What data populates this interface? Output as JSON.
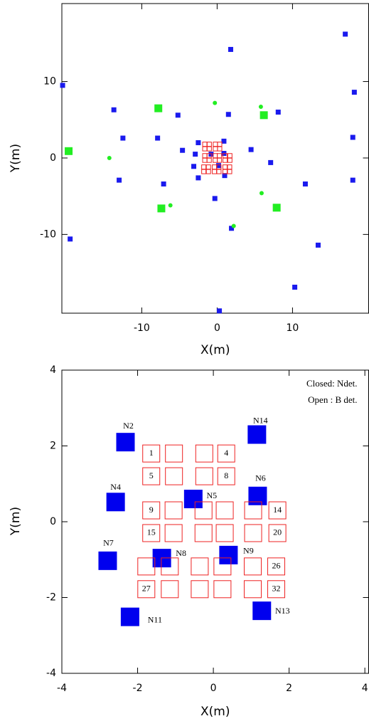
{
  "chart_data": [
    {
      "type": "scatter",
      "xlabel": "X(m)",
      "ylabel": "Y(m)",
      "xlim": [
        -20.6,
        20.1
      ],
      "ylim": [
        -20.3,
        20.2
      ],
      "xticks": [
        -10,
        0,
        10
      ],
      "yticks": [
        -10,
        0,
        10
      ],
      "series": [
        {
          "color": "#1a1aee",
          "marker": "square",
          "filled": true,
          "x": [
            17.0,
            1.8,
            -20.5,
            18.2,
            -13.7,
            -5.2,
            1.5,
            8.1,
            -12.5,
            -7.9,
            18.0,
            -4.6,
            4.5,
            -2.5,
            0.9,
            -2.9,
            -0.8,
            7.1,
            -3.1,
            0.2,
            0.9,
            1.0,
            -13.0,
            -7.1,
            -2.5,
            11.7,
            18.0,
            -0.3,
            1.9,
            -19.5,
            13.4,
            10.3,
            0.3
          ],
          "y": [
            16.2,
            14.2,
            9.5,
            8.6,
            6.3,
            5.6,
            5.7,
            6.0,
            2.6,
            2.6,
            2.7,
            1.0,
            1.1,
            2.0,
            2.2,
            0.5,
            0.5,
            -0.6,
            -1.1,
            -1.0,
            0.6,
            -2.3,
            -2.9,
            -3.4,
            -2.6,
            -3.4,
            -2.9,
            -5.3,
            -9.2,
            -10.6,
            -11.4,
            -16.9,
            -20.0
          ]
        },
        {
          "color": "#22ee22",
          "marker": "square",
          "filled": true,
          "x": [
            -7.8,
            6.2,
            -19.7,
            -7.4,
            7.9
          ],
          "y": [
            6.5,
            5.6,
            0.9,
            -6.6,
            -6.5
          ]
        },
        {
          "color": "#22ee22",
          "marker": "circle",
          "filled": true,
          "x": [
            -0.3,
            5.8,
            -14.3,
            -6.2,
            5.9,
            2.2
          ],
          "y": [
            7.2,
            6.7,
            0.0,
            -6.2,
            -4.6,
            -8.9
          ]
        },
        {
          "color": "#ee2222",
          "marker": "square",
          "filled": false,
          "x": [
            -1.64,
            -1.04,
            -0.24,
            0.34,
            -1.64,
            -1.04,
            -0.24,
            0.34,
            -1.64,
            -1.05,
            -0.26,
            0.3,
            1.05,
            1.69,
            -1.64,
            -1.05,
            -0.26,
            0.3,
            1.05,
            1.69,
            -1.77,
            -1.15,
            -0.36,
            0.24,
            1.04,
            1.66,
            -1.77,
            -1.15,
            -0.36,
            0.24,
            1.04,
            1.66
          ],
          "y": [
            1.8,
            1.8,
            1.8,
            1.8,
            1.2,
            1.2,
            1.2,
            1.2,
            0.3,
            0.3,
            0.3,
            0.3,
            0.3,
            0.3,
            -0.3,
            -0.3,
            -0.3,
            -0.3,
            -0.3,
            -0.3,
            -1.18,
            -1.18,
            -1.18,
            -1.18,
            -1.18,
            -1.18,
            -1.78,
            -1.78,
            -1.78,
            -1.78,
            -1.78,
            -1.78
          ]
        }
      ]
    },
    {
      "type": "scatter",
      "xlabel": "X(m)",
      "ylabel": "Y(m)",
      "xlim": [
        -4,
        4.1
      ],
      "ylim": [
        -4,
        4
      ],
      "xticks": [
        -4,
        -2,
        0,
        2,
        4
      ],
      "yticks": [
        -4,
        -2,
        0,
        2,
        4
      ],
      "legend": "upper right",
      "series": [
        {
          "name": "Closed: Ndet.",
          "color": "#0000ee",
          "marker": "square",
          "filled": true,
          "x": [
            -2.32,
            1.15,
            -2.58,
            -0.53,
            1.17,
            -2.79,
            -1.36,
            0.4,
            -2.2,
            1.28
          ],
          "y": [
            2.1,
            2.3,
            0.52,
            0.6,
            0.68,
            -1.03,
            -0.96,
            -0.88,
            -2.51,
            -2.35
          ],
          "labels": [
            "N2",
            "N14",
            "N4",
            "N5",
            "N6",
            "N7",
            "N8",
            "N9",
            "N11",
            "N13"
          ]
        },
        {
          "name": "Open : B det.",
          "color": "#ee2222",
          "marker": "square",
          "filled": false,
          "x": [
            -1.64,
            -1.04,
            -0.24,
            0.34,
            -1.64,
            -1.04,
            -0.24,
            0.34,
            -1.64,
            -1.05,
            -0.26,
            0.3,
            1.05,
            1.69,
            -1.64,
            -1.05,
            -0.26,
            0.3,
            1.05,
            1.69,
            -1.77,
            -1.15,
            -0.36,
            0.24,
            1.04,
            1.66,
            -1.77,
            -1.15,
            -0.36,
            0.24,
            1.04,
            1.66
          ],
          "y": [
            1.8,
            1.8,
            1.8,
            1.8,
            1.2,
            1.2,
            1.2,
            1.2,
            0.3,
            0.3,
            0.3,
            0.3,
            0.3,
            0.3,
            -0.3,
            -0.3,
            -0.3,
            -0.3,
            -0.3,
            -0.3,
            -1.18,
            -1.18,
            -1.18,
            -1.18,
            -1.18,
            -1.18,
            -1.78,
            -1.78,
            -1.78,
            -1.78,
            -1.78,
            -1.78
          ],
          "labels": [
            "1",
            null,
            null,
            "4",
            "5",
            null,
            null,
            "8",
            "9",
            null,
            null,
            null,
            null,
            "14",
            "15",
            null,
            null,
            null,
            null,
            "20",
            null,
            null,
            null,
            null,
            null,
            "26",
            "27",
            null,
            null,
            null,
            null,
            "32"
          ]
        }
      ]
    }
  ]
}
